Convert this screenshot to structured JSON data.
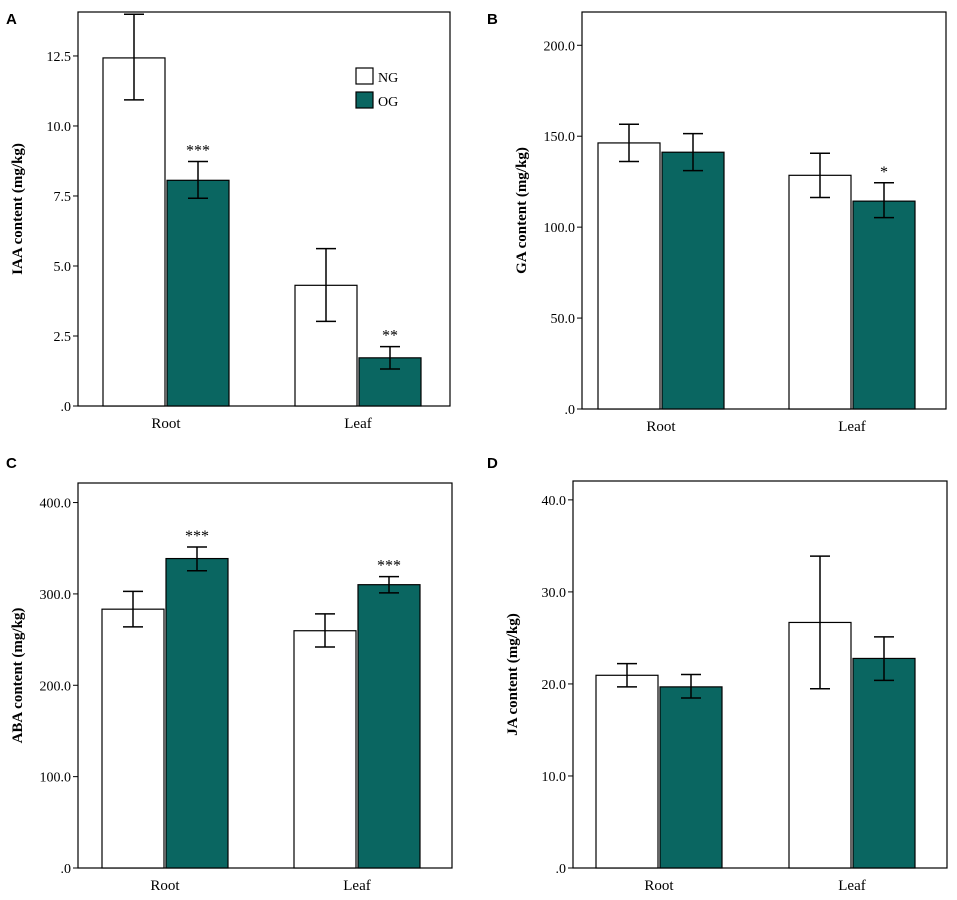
{
  "colors": {
    "ng_fill": "#ffffff",
    "og_fill": "#0a6661",
    "stroke": "#000000"
  },
  "legend": {
    "entries": [
      "NG",
      "OG"
    ]
  },
  "chart_data": [
    {
      "panel": "A",
      "type": "bar",
      "ylabel": "IAA content (mg/kg)",
      "categories": [
        "Root",
        "Leaf"
      ],
      "ylim": [
        0,
        14.07
      ],
      "ticks": [
        ".0",
        "2.5",
        "5.0",
        "7.5",
        "10.0",
        "12.5"
      ],
      "tick_values": [
        0,
        2.5,
        5.0,
        7.5,
        10.0,
        12.5
      ],
      "series": [
        {
          "name": "NG",
          "values": [
            12.43,
            4.31
          ],
          "err_low": [
            10.93,
            3.02
          ],
          "err_high": [
            13.99,
            5.62
          ],
          "sig": [
            "",
            ""
          ]
        },
        {
          "name": "OG",
          "values": [
            8.06,
            1.72
          ],
          "err_low": [
            7.42,
            1.32
          ],
          "err_high": [
            8.73,
            2.12
          ],
          "sig": [
            "***",
            "**"
          ]
        }
      ]
    },
    {
      "panel": "B",
      "type": "bar",
      "ylabel": "GA content (mg/kg)",
      "categories": [
        "Root",
        "Leaf"
      ],
      "ylim": [
        0,
        218.3
      ],
      "ticks": [
        ".0",
        "50.0",
        "100.0",
        "150.0",
        "200.0"
      ],
      "tick_values": [
        0,
        50,
        100,
        150,
        200
      ],
      "series": [
        {
          "name": "NG",
          "values": [
            146.3,
            128.5
          ],
          "err_low": [
            136.1,
            116.3
          ],
          "err_high": [
            156.6,
            140.6
          ],
          "sig": [
            "",
            ""
          ]
        },
        {
          "name": "OG",
          "values": [
            141.2,
            114.3
          ],
          "err_low": [
            131.1,
            105.2
          ],
          "err_high": [
            151.4,
            124.4
          ],
          "sig": [
            "",
            "*"
          ]
        }
      ]
    },
    {
      "panel": "C",
      "type": "bar",
      "ylabel": "ABA content (mg/kg)",
      "categories": [
        "Root",
        "Leaf"
      ],
      "ylim": [
        0,
        421.4
      ],
      "ticks": [
        ".0",
        "100.0",
        "200.0",
        "300.0",
        "400.0"
      ],
      "tick_values": [
        0,
        100,
        200,
        300,
        400
      ],
      "series": [
        {
          "name": "NG",
          "values": [
            283.3,
            259.7
          ],
          "err_low": [
            263.9,
            241.9
          ],
          "err_high": [
            302.8,
            278.1
          ],
          "sig": [
            "",
            ""
          ]
        },
        {
          "name": "OG",
          "values": [
            338.7,
            310.1
          ],
          "err_low": [
            325.4,
            301.2
          ],
          "err_high": [
            351.4,
            318.9
          ],
          "sig": [
            "***",
            "***"
          ]
        }
      ]
    },
    {
      "panel": "D",
      "type": "bar",
      "ylabel": "JA content (mg/kg)",
      "categories": [
        "Root",
        "Leaf"
      ],
      "ylim": [
        0,
        42.05
      ],
      "ticks": [
        ".0",
        "10.0",
        "20.0",
        "30.0",
        "40.0"
      ],
      "tick_values": [
        0,
        10,
        20,
        30,
        40
      ],
      "series": [
        {
          "name": "NG",
          "values": [
            20.94,
            26.68
          ],
          "err_low": [
            19.68,
            19.48
          ],
          "err_high": [
            22.2,
            33.89
          ],
          "sig": [
            "",
            ""
          ]
        },
        {
          "name": "OG",
          "values": [
            19.68,
            22.77
          ],
          "err_low": [
            18.47,
            20.38
          ],
          "err_high": [
            21.02,
            25.11
          ],
          "sig": [
            "",
            ""
          ]
        }
      ]
    }
  ]
}
